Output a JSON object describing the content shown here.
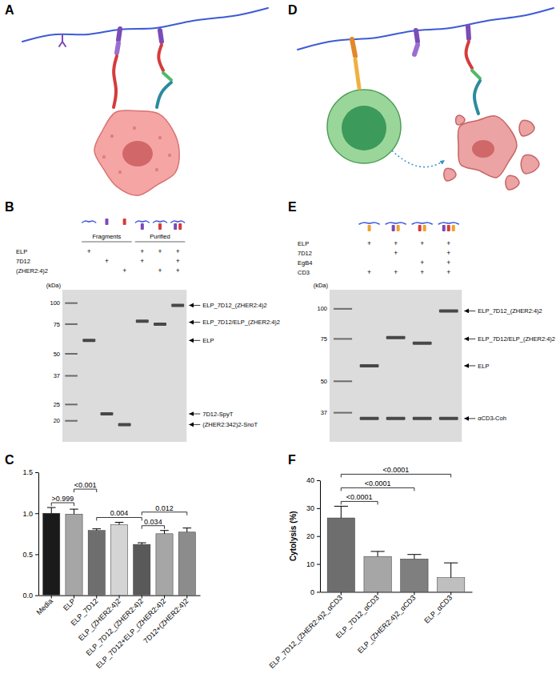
{
  "panel_letters": [
    "A",
    "B",
    "C",
    "D",
    "E",
    "F"
  ],
  "gel_b": {
    "unit_label": "(kDa)",
    "ylim": [
      15,
      120
    ],
    "ladder": [
      100,
      75,
      50,
      37,
      25,
      20
    ],
    "rows": [
      "ELP",
      "7D12",
      "(ZHER2:4)2"
    ],
    "groups": [
      {
        "label": "Fragments",
        "lanes": [
          {
            "marks": [
              "+",
              null,
              null
            ],
            "bands": [
              60
            ]
          },
          {
            "marks": [
              null,
              "+",
              null
            ],
            "bands": [
              22
            ]
          },
          {
            "marks": [
              null,
              null,
              "+"
            ],
            "bands": [
              19
            ]
          }
        ]
      },
      {
        "label": "Purified",
        "lanes": [
          {
            "marks": [
              "+",
              "+",
              null
            ],
            "bands": [
              78
            ]
          },
          {
            "marks": [
              "+",
              null,
              "+"
            ],
            "bands": [
              75
            ]
          },
          {
            "marks": [
              "+",
              "+",
              "+"
            ],
            "bands": [
              97
            ]
          }
        ]
      }
    ],
    "band_labels": [
      {
        "text": "ELP_7D12_(ZHER2:4)2",
        "kda": 97
      },
      {
        "text": "ELP_7D12/ELP_(ZHER2:4)2",
        "kda": 77
      },
      {
        "text": "ELP",
        "kda": 60
      },
      {
        "text": "7D12-SpyT",
        "kda": 22
      },
      {
        "text": "(ZHER2:342)2-SnoT",
        "kda": 19
      }
    ]
  },
  "gel_e": {
    "unit_label": "(kDa)",
    "ylim": [
      28,
      120
    ],
    "ladder": [
      100,
      75,
      50,
      37
    ],
    "rows": [
      "ELP",
      "7D12",
      "EgB4",
      "CD3"
    ],
    "lanes": [
      {
        "marks": [
          "+",
          null,
          null,
          "+"
        ],
        "bands": [
          58,
          35
        ]
      },
      {
        "marks": [
          "+",
          "+",
          null,
          "+"
        ],
        "bands": [
          76,
          35
        ]
      },
      {
        "marks": [
          "+",
          null,
          "+",
          "+"
        ],
        "bands": [
          72,
          35
        ]
      },
      {
        "marks": [
          "+",
          "+",
          "+",
          "+"
        ],
        "bands": [
          98,
          35
        ]
      }
    ],
    "band_labels": [
      {
        "text": "ELP_7D12_(ZHER2:4)2",
        "kda": 98
      },
      {
        "text": "ELP_7D12/ELP_(ZHER2:4)2",
        "kda": 75
      },
      {
        "text": "ELP",
        "kda": 58
      },
      {
        "text": "αCD3-Coh",
        "kda": 35
      }
    ]
  },
  "chart_data": [
    {
      "type": "bar",
      "categories": [
        "Media",
        "ELP",
        "ELP_7D12",
        "ELP_(ZHER2:4)2",
        "ELP_7D12_(ZHER2:4)2",
        "ELP_7D12+ELP_(ZHER2:4)2",
        "7D12+(ZHER2:4)2"
      ],
      "values": [
        1.0,
        0.99,
        0.79,
        0.86,
        0.62,
        0.75,
        0.77
      ],
      "errors": [
        0.07,
        0.06,
        0.02,
        0.03,
        0.02,
        0.04,
        0.05
      ],
      "colors": [
        "#1a1a1a",
        "#a6a6a6",
        "#6e6e6e",
        "#d4d4d4",
        "#595959",
        "#a6a6a6",
        "#8c8c8c"
      ],
      "ylim": [
        0,
        1.5
      ],
      "yticks": [
        {
          "value": 0,
          "label": "0.0"
        },
        {
          "value": 0.5,
          "label": "0.5"
        },
        {
          "value": 1,
          "label": "1.0"
        },
        {
          "value": 1.5,
          "label": "1.5"
        }
      ],
      "significance": [
        {
          "label": ">0.999",
          "from": 0,
          "to": 1
        },
        {
          "label": "<0.001",
          "from": 1,
          "to": 2
        },
        {
          "label": "0.004",
          "from": 2,
          "to": 4
        },
        {
          "label": "0.034",
          "from": 4,
          "to": 5
        },
        {
          "label": "0.012",
          "from": 4,
          "to": 6
        }
      ]
    },
    {
      "type": "bar",
      "y_label": "Cytolysis (%)",
      "categories": [
        "ELP_7D12_(ZHER2:4)2_αCD3",
        "ELP_7D12_αCD3",
        "ELP_(ZHER2:4)2_αCD3",
        "ELP_αCD3"
      ],
      "values": [
        26.5,
        12.7,
        11.8,
        5.1
      ],
      "errors": [
        4.2,
        1.8,
        1.6,
        5.3
      ],
      "colors": [
        "#6e6e6e",
        "#a6a6a6",
        "#7f7f7f",
        "#bfbfbf"
      ],
      "ylim": [
        0,
        40
      ],
      "yticks": [
        0,
        10,
        20,
        30,
        40
      ],
      "significance": [
        {
          "label": "<0.0001",
          "from": 0,
          "to": 1
        },
        {
          "label": "<0.0001",
          "from": 0,
          "to": 2
        },
        {
          "label": "<0.0001",
          "from": 0,
          "to": 3
        }
      ]
    }
  ]
}
